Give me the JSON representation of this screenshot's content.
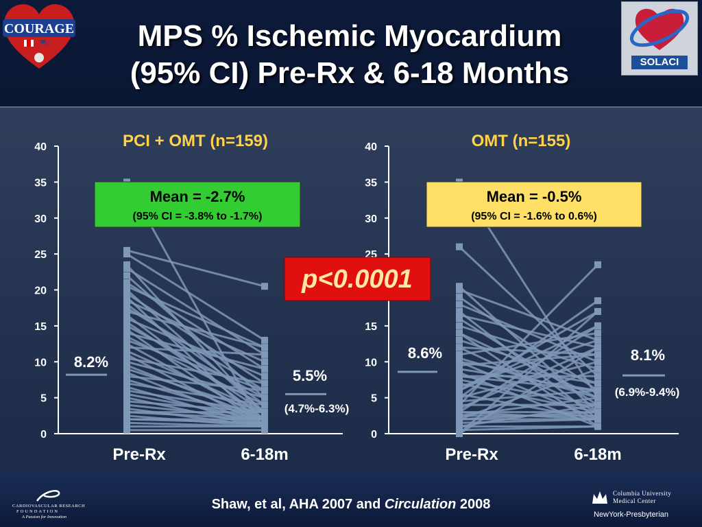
{
  "title": {
    "line1": "MPS % Ischemic Myocardium",
    "line2": "(95% CI) Pre-Rx & 6-18 Months"
  },
  "citation": {
    "before": "Shaw, et al, AHA 2007 and ",
    "italic": "Circulation",
    "after": " 2008"
  },
  "logos": {
    "courage": "COURAGE",
    "solaci": "SOLACI",
    "crf_line1": "CARDIOVASCULAR RESEARCH",
    "crf_line2": "FOUNDATION",
    "crf_line3": "A Passion for Innovation",
    "columbia_line1": "Columbia University",
    "columbia_line2": "Medical Center",
    "columbia_line3": "NewYork-Presbyterian"
  },
  "p_value": "p<0.0001",
  "colors": {
    "line": "#7f98b8",
    "mean_green": "#33cc33",
    "mean_yellow": "#ffe066",
    "p_box": "#e01010",
    "panel_title": "#ffd24d"
  },
  "chart_data": [
    {
      "type": "line",
      "title": "PCI + OMT (n=159)",
      "categories": [
        "Pre-Rx",
        "6-18m"
      ],
      "ylim": [
        0,
        40
      ],
      "yticks": [
        0,
        5,
        10,
        15,
        20,
        25,
        30,
        35,
        40
      ],
      "mean_box": {
        "main": "Mean = -2.7%",
        "ci": "(95% CI = -3.8% to -1.7%)",
        "color": "#33cc33"
      },
      "pre_mean_label": "8.2%",
      "pre_mean_value": 8.2,
      "post_mean_label": "5.5%",
      "post_mean_value": 5.5,
      "post_ci_label": "(4.7%-6.3%)",
      "patient_lines": [
        [
          35,
          0.5
        ],
        [
          25.5,
          20.5
        ],
        [
          25,
          13
        ],
        [
          23.5,
          2.5
        ],
        [
          23,
          11
        ],
        [
          22,
          5
        ],
        [
          21,
          9
        ],
        [
          20.5,
          12
        ],
        [
          20,
          3
        ],
        [
          19.5,
          7
        ],
        [
          19,
          1
        ],
        [
          18.5,
          10
        ],
        [
          18,
          4
        ],
        [
          17.5,
          6
        ],
        [
          17,
          12
        ],
        [
          16.5,
          2
        ],
        [
          16,
          8
        ],
        [
          15.5,
          3
        ],
        [
          15,
          5
        ],
        [
          14.5,
          1
        ],
        [
          14,
          9
        ],
        [
          13.5,
          4
        ],
        [
          13,
          6
        ],
        [
          12.5,
          2
        ],
        [
          12,
          11
        ],
        [
          11.5,
          3
        ],
        [
          11,
          1
        ],
        [
          10.5,
          7
        ],
        [
          10,
          5
        ],
        [
          9.5,
          2
        ],
        [
          9,
          3
        ],
        [
          8.5,
          1
        ],
        [
          8,
          6
        ],
        [
          7.5,
          2
        ],
        [
          7,
          4
        ],
        [
          6.5,
          1
        ],
        [
          6,
          3
        ],
        [
          5.5,
          2
        ],
        [
          5,
          1
        ],
        [
          4.5,
          3
        ],
        [
          4,
          2
        ],
        [
          3.5,
          1
        ],
        [
          3,
          2
        ],
        [
          2.5,
          1
        ],
        [
          2,
          1.5
        ],
        [
          1.5,
          1
        ],
        [
          1,
          1
        ],
        [
          0.5,
          0.5
        ],
        [
          3,
          3
        ],
        [
          2,
          2
        ]
      ]
    },
    {
      "type": "line",
      "title": "OMT (n=155)",
      "categories": [
        "Pre-Rx",
        "6-18m"
      ],
      "ylim": [
        0,
        40
      ],
      "yticks": [
        0,
        5,
        10,
        15,
        20,
        25,
        30,
        35,
        40
      ],
      "mean_box": {
        "main": "Mean = -0.5%",
        "ci": "(95% CI = -1.6% to 0.6%)",
        "color": "#ffe066"
      },
      "pre_mean_label": "8.6%",
      "pre_mean_value": 8.6,
      "post_mean_label": "8.1%",
      "post_mean_value": 8.1,
      "post_ci_label": "(6.9%-9.4%)",
      "patient_lines": [
        [
          35,
          5
        ],
        [
          26,
          8
        ],
        [
          20.5,
          3
        ],
        [
          20,
          13
        ],
        [
          19,
          6
        ],
        [
          18,
          10
        ],
        [
          17,
          2
        ],
        [
          16.5,
          12
        ],
        [
          16,
          4
        ],
        [
          15,
          9
        ],
        [
          14,
          1
        ],
        [
          13,
          7
        ],
        [
          12,
          3
        ],
        [
          11,
          14
        ],
        [
          10.5,
          5
        ],
        [
          10,
          2
        ],
        [
          9.5,
          11
        ],
        [
          9,
          6
        ],
        [
          8.5,
          1
        ],
        [
          8,
          8
        ],
        [
          7.5,
          4
        ],
        [
          7,
          3
        ],
        [
          6.5,
          13
        ],
        [
          6,
          17
        ],
        [
          5.5,
          2
        ],
        [
          5,
          18.5
        ],
        [
          4.5,
          6
        ],
        [
          4,
          23.5
        ],
        [
          3.5,
          12
        ],
        [
          3,
          15
        ],
        [
          3,
          2
        ],
        [
          2.5,
          5
        ],
        [
          2,
          3
        ],
        [
          2,
          9
        ],
        [
          1.5,
          2
        ],
        [
          1,
          4
        ],
        [
          0.5,
          1
        ],
        [
          0,
          12
        ],
        [
          0,
          17
        ],
        [
          4,
          4
        ],
        [
          3,
          3
        ],
        [
          2,
          2
        ],
        [
          1,
          1
        ],
        [
          6,
          15
        ],
        [
          5,
          10
        ],
        [
          8,
          6
        ],
        [
          10,
          7
        ],
        [
          12,
          11
        ],
        [
          14,
          5
        ],
        [
          2.5,
          2.5
        ]
      ]
    }
  ]
}
